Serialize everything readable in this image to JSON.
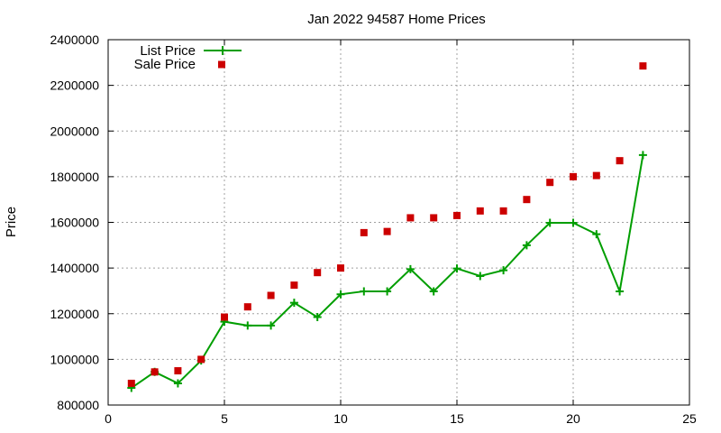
{
  "chart_data": {
    "type": "line",
    "title": "Jan 2022 94587 Home Prices",
    "xlabel": "",
    "ylabel": "Price",
    "xlim": [
      0,
      25
    ],
    "ylim": [
      800000,
      2400000
    ],
    "xticks": [
      0,
      5,
      10,
      15,
      20,
      25
    ],
    "yticks": [
      800000,
      1000000,
      1200000,
      1400000,
      1600000,
      1800000,
      2000000,
      2200000,
      2400000
    ],
    "grid": true,
    "legend_position": "top-left",
    "series": [
      {
        "name": "List Price",
        "style": "line-with-plus-markers",
        "color": "#009e00",
        "x": [
          1,
          2,
          3,
          4,
          5,
          6,
          7,
          8,
          9,
          10,
          11,
          12,
          13,
          14,
          15,
          16,
          17,
          18,
          19,
          20,
          21,
          22,
          23
        ],
        "values": [
          875000,
          945000,
          895000,
          995000,
          1165000,
          1148000,
          1148000,
          1248000,
          1185000,
          1285000,
          1298000,
          1298000,
          1395000,
          1298000,
          1398000,
          1365000,
          1390000,
          1500000,
          1598000,
          1598000,
          1548000,
          1298000,
          1895000
        ]
      },
      {
        "name": "Sale Price",
        "style": "square-markers",
        "color": "#cc0000",
        "x": [
          1,
          2,
          3,
          4,
          5,
          6,
          7,
          8,
          9,
          10,
          11,
          12,
          13,
          14,
          15,
          16,
          17,
          18,
          19,
          20,
          21,
          22,
          23
        ],
        "values": [
          895000,
          945000,
          950000,
          1000000,
          1185000,
          1230000,
          1280000,
          1325000,
          1380000,
          1400000,
          1555000,
          1560000,
          1620000,
          1620000,
          1630000,
          1650000,
          1650000,
          1700000,
          1775000,
          1800000,
          1805000,
          1870000,
          2285000
        ]
      }
    ]
  }
}
